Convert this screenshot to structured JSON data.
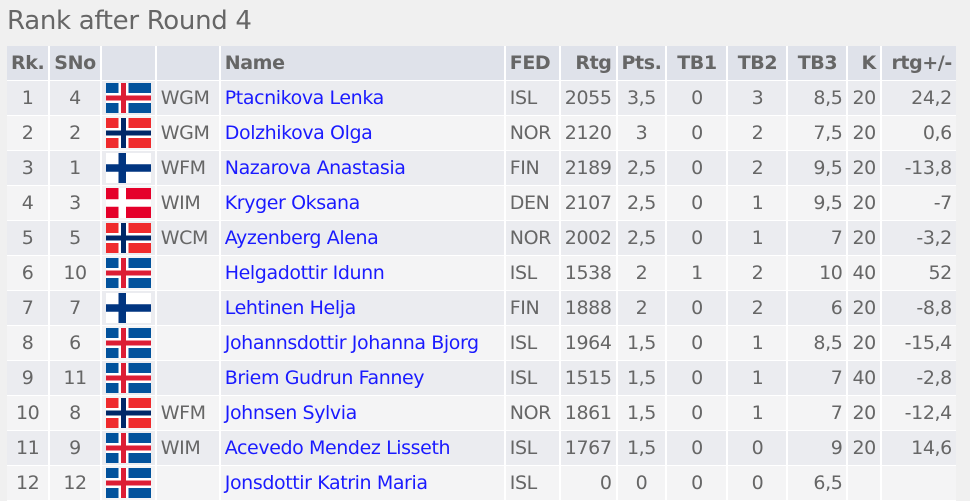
{
  "title": "Rank after Round 4",
  "headers": {
    "rk": "Rk.",
    "sno": "SNo",
    "flag": "",
    "title": "",
    "name": "Name",
    "fed": "FED",
    "rtg": "Rtg",
    "pts": "Pts.",
    "tb1": "TB1",
    "tb2": "TB2",
    "tb3": "TB3",
    "k": "K",
    "rtgdiff": "rtg+/-"
  },
  "colors": {
    "name_link": "#1a1aff",
    "header_bg": "#dfe2ea",
    "row_odd": "#ebecf0",
    "row_even": "#f4f4f5"
  },
  "rows": [
    {
      "rk": "1",
      "sno": "4",
      "flag": "ISL",
      "title": "WGM",
      "name": "Ptacnikova Lenka",
      "fed": "ISL",
      "rtg": "2055",
      "pts": "3,5",
      "tb1": "0",
      "tb2": "3",
      "tb3": "8,5",
      "k": "20",
      "rtgdiff": "24,2"
    },
    {
      "rk": "2",
      "sno": "2",
      "flag": "NOR",
      "title": "WGM",
      "name": "Dolzhikova Olga",
      "fed": "NOR",
      "rtg": "2120",
      "pts": "3",
      "tb1": "0",
      "tb2": "2",
      "tb3": "7,5",
      "k": "20",
      "rtgdiff": "0,6"
    },
    {
      "rk": "3",
      "sno": "1",
      "flag": "FIN",
      "title": "WFM",
      "name": "Nazarova Anastasia",
      "fed": "FIN",
      "rtg": "2189",
      "pts": "2,5",
      "tb1": "0",
      "tb2": "2",
      "tb3": "9,5",
      "k": "20",
      "rtgdiff": "-13,8"
    },
    {
      "rk": "4",
      "sno": "3",
      "flag": "DEN",
      "title": "WIM",
      "name": "Kryger Oksana",
      "fed": "DEN",
      "rtg": "2107",
      "pts": "2,5",
      "tb1": "0",
      "tb2": "1",
      "tb3": "9,5",
      "k": "20",
      "rtgdiff": "-7"
    },
    {
      "rk": "5",
      "sno": "5",
      "flag": "NOR",
      "title": "WCM",
      "name": "Ayzenberg Alena",
      "fed": "NOR",
      "rtg": "2002",
      "pts": "2,5",
      "tb1": "0",
      "tb2": "1",
      "tb3": "7",
      "k": "20",
      "rtgdiff": "-3,2"
    },
    {
      "rk": "6",
      "sno": "10",
      "flag": "ISL",
      "title": "",
      "name": "Helgadottir Idunn",
      "fed": "ISL",
      "rtg": "1538",
      "pts": "2",
      "tb1": "1",
      "tb2": "2",
      "tb3": "10",
      "k": "40",
      "rtgdiff": "52"
    },
    {
      "rk": "7",
      "sno": "7",
      "flag": "FIN",
      "title": "",
      "name": "Lehtinen Helja",
      "fed": "FIN",
      "rtg": "1888",
      "pts": "2",
      "tb1": "0",
      "tb2": "2",
      "tb3": "6",
      "k": "20",
      "rtgdiff": "-8,8"
    },
    {
      "rk": "8",
      "sno": "6",
      "flag": "ISL",
      "title": "",
      "name": "Johannsdottir Johanna Bjorg",
      "fed": "ISL",
      "rtg": "1964",
      "pts": "1,5",
      "tb1": "0",
      "tb2": "1",
      "tb3": "8,5",
      "k": "20",
      "rtgdiff": "-15,4"
    },
    {
      "rk": "9",
      "sno": "11",
      "flag": "ISL",
      "title": "",
      "name": "Briem Gudrun Fanney",
      "fed": "ISL",
      "rtg": "1515",
      "pts": "1,5",
      "tb1": "0",
      "tb2": "1",
      "tb3": "7",
      "k": "40",
      "rtgdiff": "-2,8"
    },
    {
      "rk": "10",
      "sno": "8",
      "flag": "NOR",
      "title": "WFM",
      "name": "Johnsen Sylvia",
      "fed": "NOR",
      "rtg": "1861",
      "pts": "1,5",
      "tb1": "0",
      "tb2": "1",
      "tb3": "7",
      "k": "20",
      "rtgdiff": "-12,4"
    },
    {
      "rk": "11",
      "sno": "9",
      "flag": "ISL",
      "title": "WIM",
      "name": "Acevedo Mendez Lisseth",
      "fed": "ISL",
      "rtg": "1767",
      "pts": "1,5",
      "tb1": "0",
      "tb2": "0",
      "tb3": "9",
      "k": "20",
      "rtgdiff": "14,6"
    },
    {
      "rk": "12",
      "sno": "12",
      "flag": "ISL",
      "title": "",
      "name": "Jonsdottir Katrin Maria",
      "fed": "ISL",
      "rtg": "0",
      "pts": "0",
      "tb1": "0",
      "tb2": "0",
      "tb3": "6,5",
      "k": "",
      "rtgdiff": ""
    }
  ]
}
